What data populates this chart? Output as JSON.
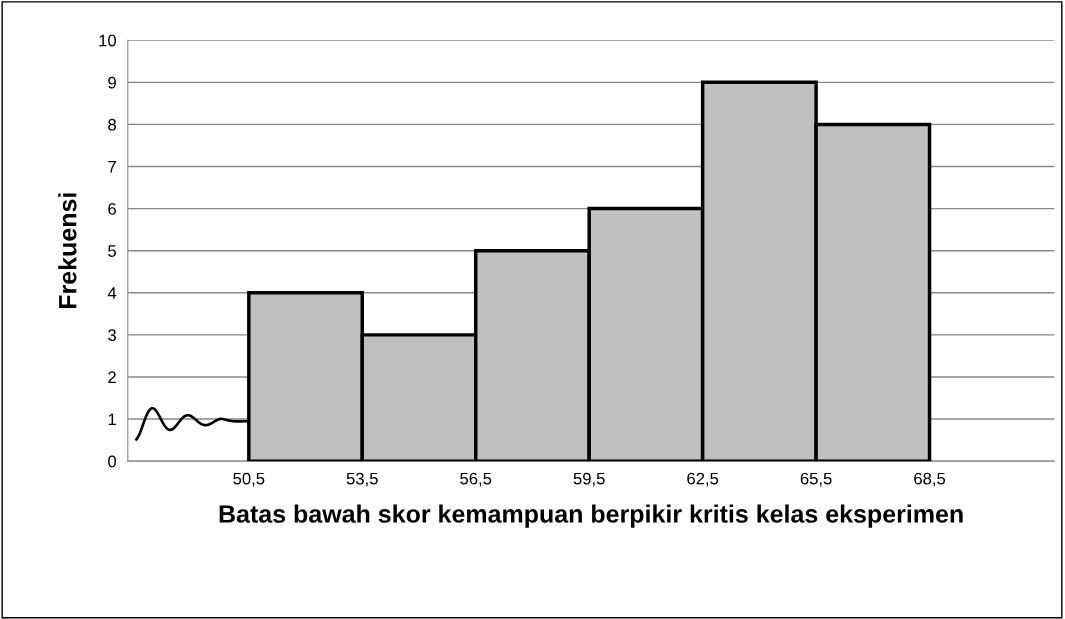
{
  "chart_data": {
    "type": "histogram",
    "xlabel": "Batas bawah skor kemampuan berpikir kritis kelas eksperimen",
    "ylabel": "Frekuensi",
    "bins": [
      50.5,
      53.5,
      56.5,
      59.5,
      62.5,
      65.5,
      68.5
    ],
    "values": [
      4,
      3,
      5,
      6,
      9,
      8
    ],
    "color": "#c0c0c0",
    "xlim": [
      47.3,
      71.8
    ],
    "xticks": [
      {
        "value": 50.5,
        "label": "50,5"
      },
      {
        "value": 53.5,
        "label": "53,5"
      },
      {
        "value": 56.5,
        "label": "56,5"
      },
      {
        "value": 59.5,
        "label": "59,5"
      },
      {
        "value": 62.5,
        "label": "62,5"
      },
      {
        "value": 65.5,
        "label": "65,5"
      },
      {
        "value": 68.5,
        "label": "68,5"
      }
    ],
    "ylim": [
      0,
      10
    ],
    "yticks": [
      0,
      1,
      2,
      3,
      4,
      5,
      6,
      7,
      8,
      9,
      10
    ],
    "grid": "y",
    "legend": false
  }
}
